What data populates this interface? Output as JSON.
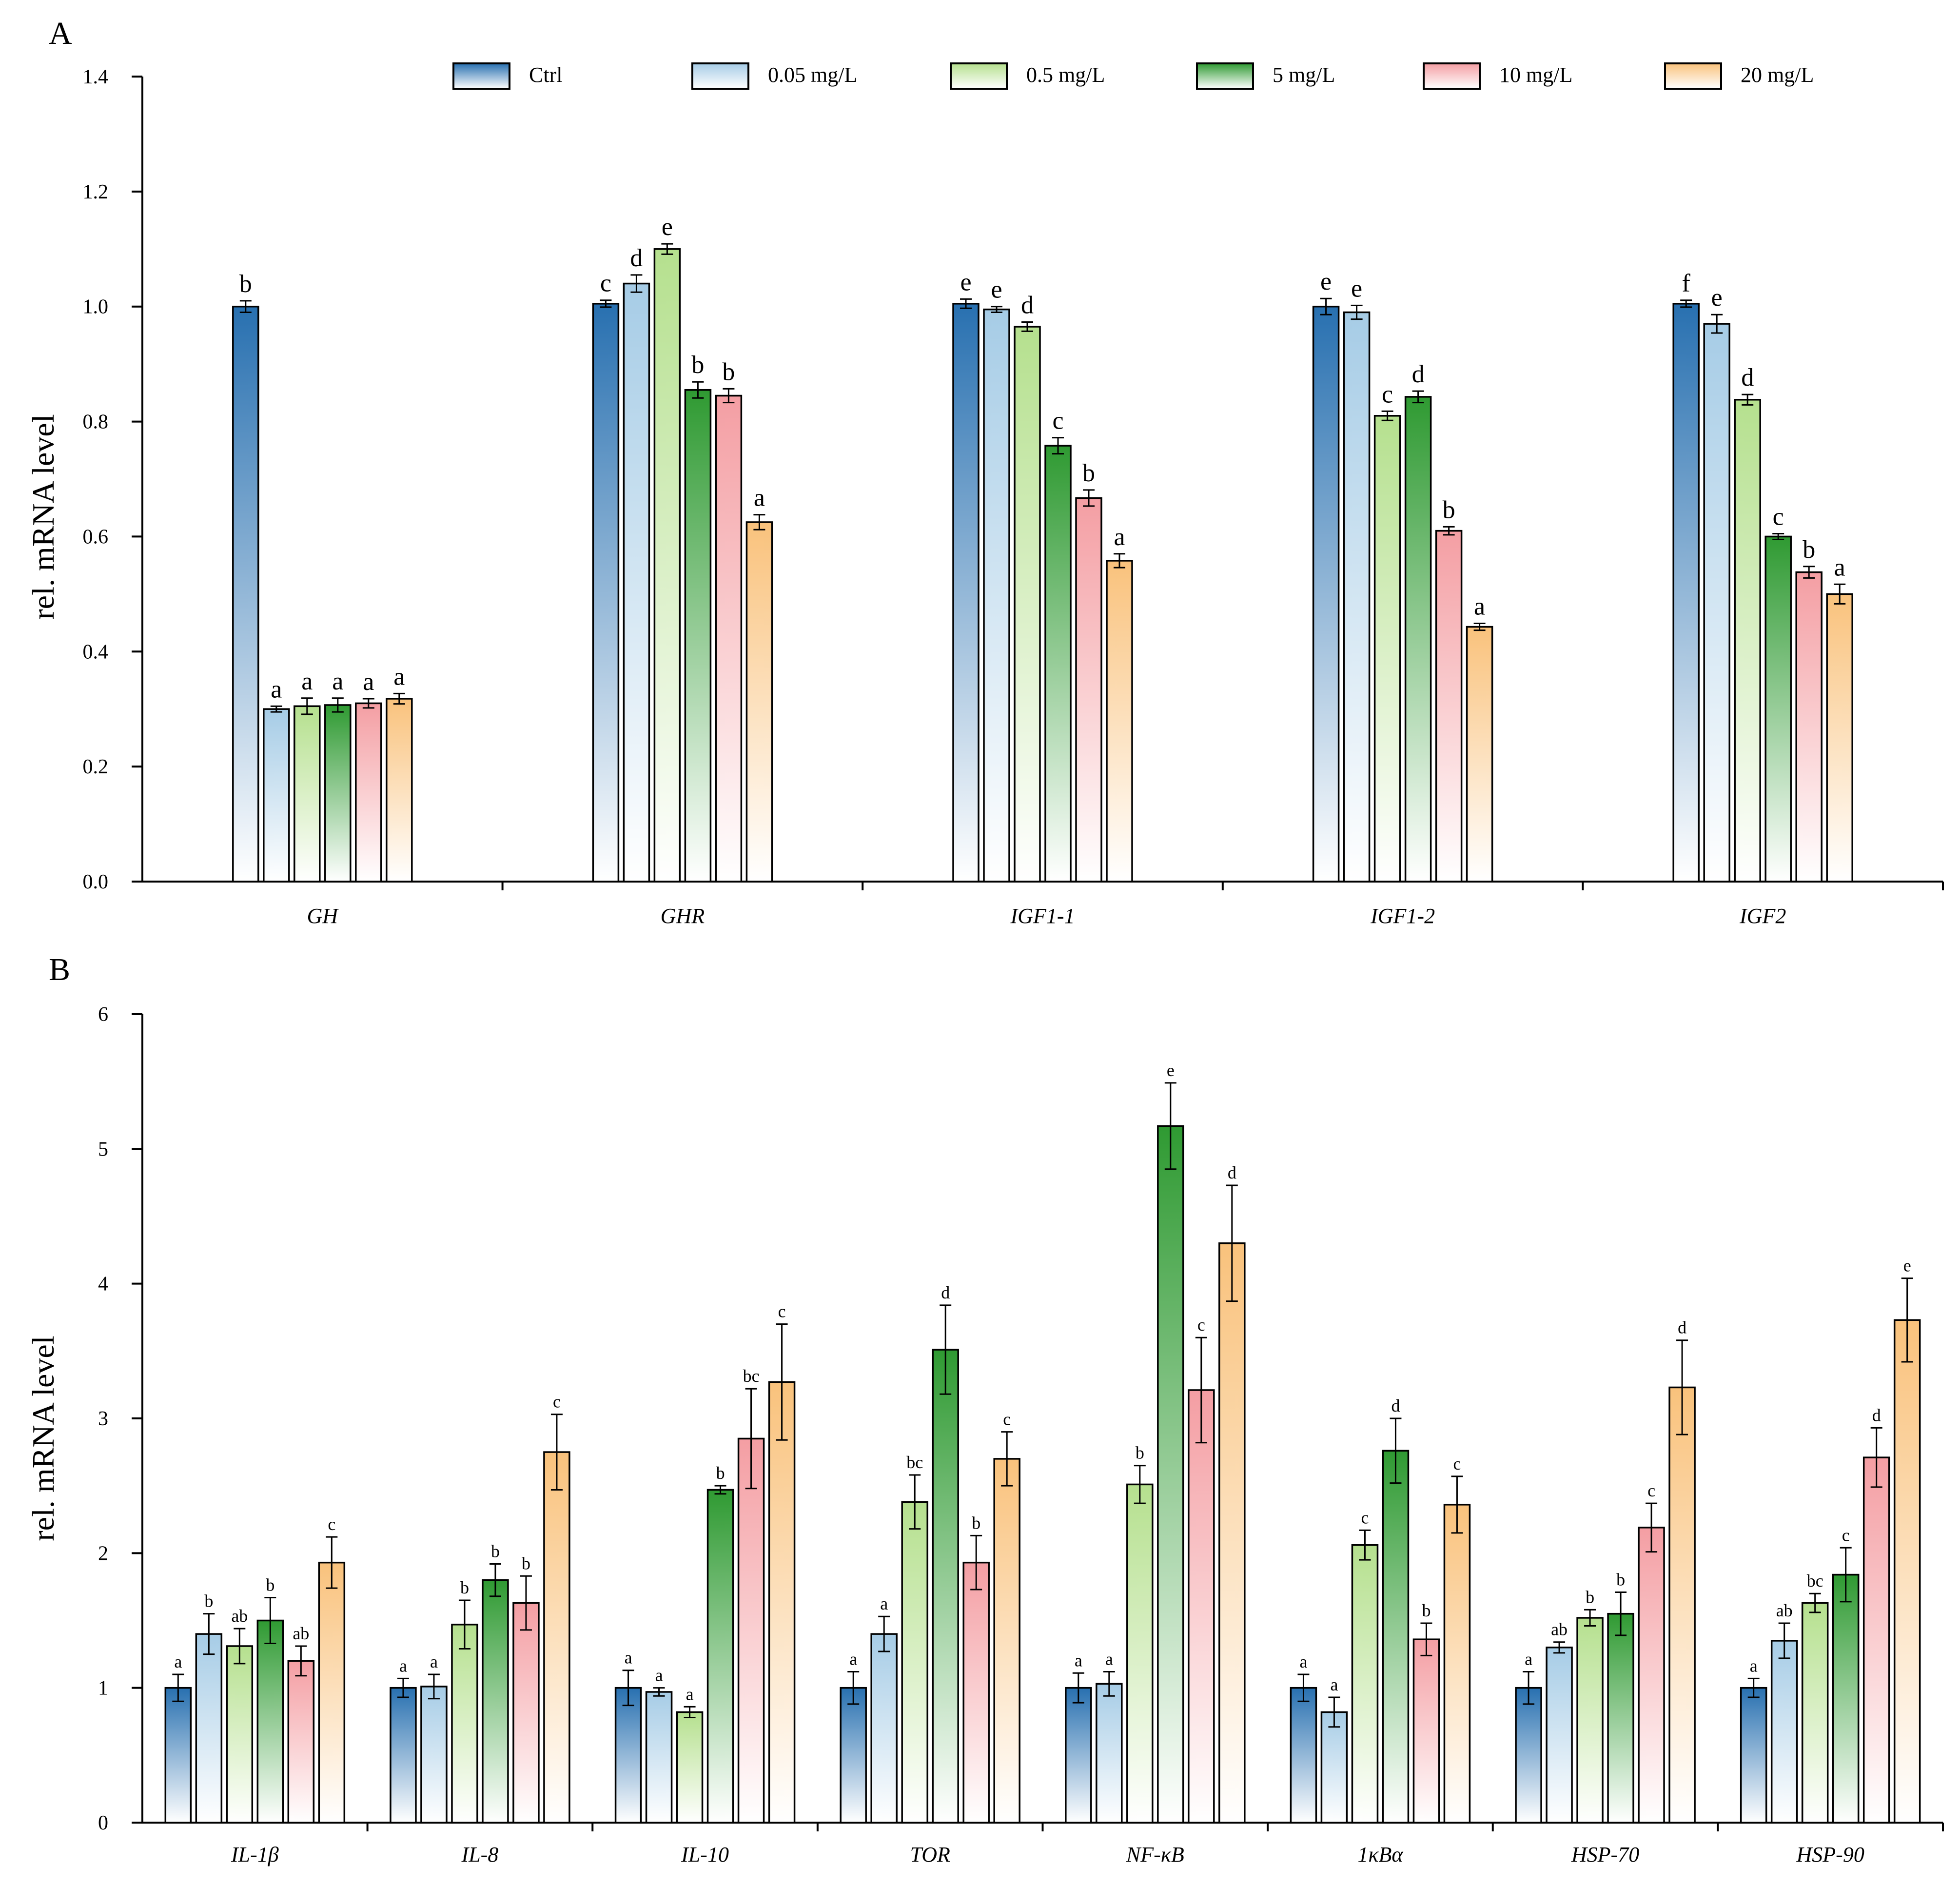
{
  "legend": [
    {
      "label": "Ctrl",
      "color": "#2870b0"
    },
    {
      "label": "0.05 mg/L",
      "color": "#a6cce6"
    },
    {
      "label": "0.5 mg/L",
      "color": "#b5e08e"
    },
    {
      "label": "5 mg/L",
      "color": "#2f9a32"
    },
    {
      "label": "10 mg/L",
      "color": "#f49ea3"
    },
    {
      "label": "20 mg/L",
      "color": "#f9c27c"
    }
  ],
  "chart_data": [
    {
      "panel": "A",
      "type": "bar",
      "ylabel": "rel. mRNA level",
      "ylim": [
        0,
        1.4
      ],
      "yticks": [
        "0.0",
        "0.2",
        "0.4",
        "0.6",
        "0.8",
        "1.0",
        "1.2",
        "1.4"
      ],
      "categories": [
        "GH",
        "GHR",
        "IGF1-1",
        "IGF1-2",
        "IGF2"
      ],
      "series": [
        {
          "name": "Ctrl",
          "values": [
            1.0,
            1.005,
            1.005,
            1.0,
            1.005
          ],
          "errors": [
            0.01,
            0.006,
            0.008,
            0.014,
            0.006
          ],
          "letters": [
            "b",
            "c",
            "e",
            "e",
            "f"
          ]
        },
        {
          "name": "0.05 mg/L",
          "values": [
            0.3,
            1.04,
            0.995,
            0.99,
            0.97
          ],
          "errors": [
            0.005,
            0.015,
            0.005,
            0.012,
            0.016
          ],
          "letters": [
            "a",
            "d",
            "e",
            "e",
            "e"
          ]
        },
        {
          "name": "0.5 mg/L",
          "values": [
            0.305,
            1.1,
            0.965,
            0.81,
            0.838
          ],
          "errors": [
            0.014,
            0.009,
            0.008,
            0.008,
            0.009
          ],
          "letters": [
            "a",
            "e",
            "d",
            "c",
            "d"
          ]
        },
        {
          "name": "5 mg/L",
          "values": [
            0.307,
            0.855,
            0.758,
            0.843,
            0.6
          ],
          "errors": [
            0.012,
            0.014,
            0.014,
            0.01,
            0.005
          ],
          "letters": [
            "a",
            "b",
            "c",
            "d",
            "c"
          ]
        },
        {
          "name": "10 mg/L",
          "values": [
            0.31,
            0.845,
            0.667,
            0.61,
            0.538
          ],
          "errors": [
            0.008,
            0.012,
            0.014,
            0.007,
            0.01
          ],
          "letters": [
            "a",
            "b",
            "b",
            "b",
            "b"
          ]
        },
        {
          "name": "20 mg/L",
          "values": [
            0.318,
            0.625,
            0.558,
            0.443,
            0.5
          ],
          "errors": [
            0.009,
            0.013,
            0.012,
            0.006,
            0.017
          ],
          "letters": [
            "a",
            "a",
            "a",
            "a",
            "a"
          ]
        }
      ]
    },
    {
      "panel": "B",
      "type": "bar",
      "ylabel": "rel. mRNA level",
      "ylim": [
        0,
        6
      ],
      "yticks": [
        "0",
        "1",
        "2",
        "3",
        "4",
        "5",
        "6"
      ],
      "categories": [
        "IL-1β",
        "IL-8",
        "IL-10",
        "TOR",
        "NF-κB",
        "1κBα",
        "HSP-70",
        "HSP-90"
      ],
      "series": [
        {
          "name": "Ctrl",
          "values": [
            1.0,
            1.0,
            1.0,
            1.0,
            1.0,
            1.0,
            1.0,
            1.0
          ],
          "errors": [
            0.1,
            0.07,
            0.13,
            0.12,
            0.11,
            0.1,
            0.12,
            0.07
          ],
          "letters": [
            "a",
            "a",
            "a",
            "a",
            "a",
            "a",
            "a",
            "a"
          ]
        },
        {
          "name": "0.05 mg/L",
          "values": [
            1.4,
            1.01,
            0.97,
            1.4,
            1.03,
            0.82,
            1.3,
            1.35
          ],
          "errors": [
            0.15,
            0.09,
            0.03,
            0.13,
            0.09,
            0.11,
            0.04,
            0.13
          ],
          "letters": [
            "b",
            "a",
            "a",
            "a",
            "a",
            "a",
            "ab",
            "ab"
          ]
        },
        {
          "name": "0.5 mg/L",
          "values": [
            1.31,
            1.47,
            0.82,
            2.38,
            2.51,
            2.06,
            1.52,
            1.63
          ],
          "errors": [
            0.13,
            0.18,
            0.04,
            0.2,
            0.14,
            0.11,
            0.06,
            0.07
          ],
          "letters": [
            "ab",
            "b",
            "a",
            "bc",
            "b",
            "c",
            "b",
            "bc"
          ]
        },
        {
          "name": "5 mg/L",
          "values": [
            1.5,
            1.8,
            2.47,
            3.51,
            5.17,
            2.76,
            1.55,
            1.84
          ],
          "errors": [
            0.17,
            0.12,
            0.03,
            0.33,
            0.32,
            0.24,
            0.16,
            0.2
          ],
          "letters": [
            "b",
            "b",
            "b",
            "d",
            "e",
            "d",
            "b",
            "c"
          ]
        },
        {
          "name": "10 mg/L",
          "values": [
            1.2,
            1.63,
            2.85,
            1.93,
            3.21,
            1.36,
            2.19,
            2.71
          ],
          "errors": [
            0.11,
            0.2,
            0.37,
            0.2,
            0.39,
            0.12,
            0.18,
            0.22
          ],
          "letters": [
            "ab",
            "b",
            "bc",
            "b",
            "c",
            "b",
            "c",
            "d"
          ]
        },
        {
          "name": "20 mg/L",
          "values": [
            1.93,
            2.75,
            3.27,
            2.7,
            4.3,
            2.36,
            3.23,
            3.73
          ],
          "errors": [
            0.19,
            0.28,
            0.43,
            0.2,
            0.43,
            0.21,
            0.35,
            0.31
          ],
          "letters": [
            "c",
            "c",
            "c",
            "c",
            "d",
            "c",
            "d",
            "e"
          ]
        }
      ]
    }
  ]
}
